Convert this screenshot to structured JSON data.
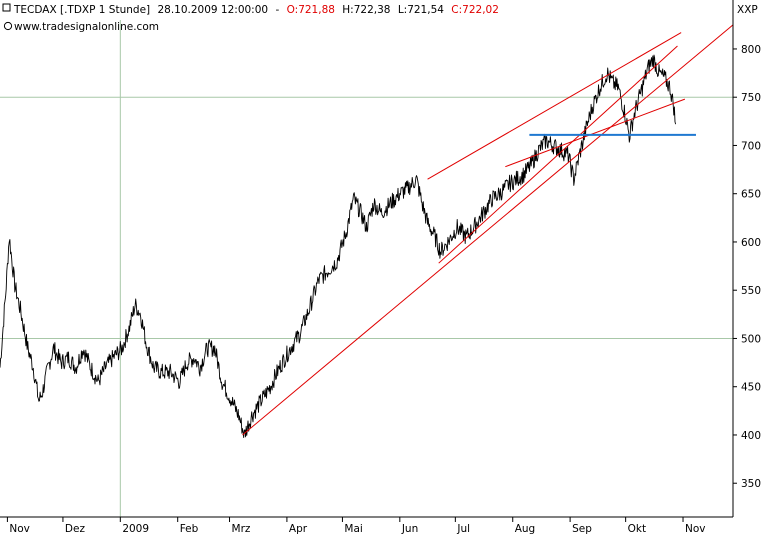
{
  "header": {
    "symbol": "TECDAX [.TDXP  1 Stunde]",
    "datetime": "28.10.2009 12:00:00",
    "sep": "-",
    "open": "O:721,88",
    "high": "H:722,38",
    "low": "L:721,54",
    "close": "C:722,02",
    "source": "www.tradesignalonline.com",
    "axis_symbol": "XXP"
  },
  "colors": {
    "price": "#000000",
    "trendline": "#e00000",
    "support": "#1f78d1",
    "grid": "#a8c8a8",
    "axis": "#000000"
  },
  "chart_data": {
    "type": "line",
    "title": "TECDAX [.TDXP  1 Stunde]",
    "xlabel": "",
    "ylabel": "",
    "ylim": [
      315,
      830
    ],
    "y_ticks": [
      350,
      400,
      450,
      500,
      550,
      600,
      650,
      700,
      750,
      800
    ],
    "x_ticks": [
      "Nov",
      "Dez",
      "2009",
      "Feb",
      "Mrz",
      "Apr",
      "Mai",
      "Jun",
      "Jul",
      "Aug",
      "Sep",
      "Okt",
      "Nov"
    ],
    "x_range": [
      "2008-10-28",
      "2009-11-28"
    ],
    "grid_lines": {
      "x": [
        "2009"
      ],
      "y": [
        500,
        750
      ]
    },
    "series": [
      {
        "kind": "price",
        "points": [
          [
            "2008-10-28",
            470
          ],
          [
            "2008-10-31",
            545
          ],
          [
            "2008-11-02",
            605
          ],
          [
            "2008-11-05",
            555
          ],
          [
            "2008-11-08",
            530
          ],
          [
            "2008-11-12",
            490
          ],
          [
            "2008-11-15",
            470
          ],
          [
            "2008-11-18",
            435
          ],
          [
            "2008-11-20",
            445
          ],
          [
            "2008-11-23",
            470
          ],
          [
            "2008-11-26",
            490
          ],
          [
            "2008-11-30",
            475
          ],
          [
            "2008-12-04",
            480
          ],
          [
            "2008-12-08",
            470
          ],
          [
            "2008-12-12",
            490
          ],
          [
            "2008-12-16",
            470
          ],
          [
            "2008-12-20",
            455
          ],
          [
            "2008-12-24",
            470
          ],
          [
            "2008-12-28",
            480
          ],
          [
            "2009-01-02",
            490
          ],
          [
            "2009-01-06",
            512
          ],
          [
            "2009-01-09",
            535
          ],
          [
            "2009-01-12",
            525
          ],
          [
            "2009-01-15",
            495
          ],
          [
            "2009-01-19",
            470
          ],
          [
            "2009-01-23",
            465
          ],
          [
            "2009-01-28",
            465
          ],
          [
            "2009-02-02",
            455
          ],
          [
            "2009-02-06",
            475
          ],
          [
            "2009-02-10",
            480
          ],
          [
            "2009-02-13",
            470
          ],
          [
            "2009-02-17",
            490
          ],
          [
            "2009-02-21",
            490
          ],
          [
            "2009-02-25",
            455
          ],
          [
            "2009-03-01",
            440
          ],
          [
            "2009-03-06",
            420
          ],
          [
            "2009-03-09",
            400
          ],
          [
            "2009-03-13",
            420
          ],
          [
            "2009-03-18",
            435
          ],
          [
            "2009-03-23",
            450
          ],
          [
            "2009-03-28",
            470
          ],
          [
            "2009-04-03",
            490
          ],
          [
            "2009-04-08",
            505
          ],
          [
            "2009-04-13",
            530
          ],
          [
            "2009-04-18",
            560
          ],
          [
            "2009-04-23",
            570
          ],
          [
            "2009-04-28",
            580
          ],
          [
            "2009-05-03",
            610
          ],
          [
            "2009-05-07",
            645
          ],
          [
            "2009-05-11",
            630
          ],
          [
            "2009-05-14",
            615
          ],
          [
            "2009-05-18",
            640
          ],
          [
            "2009-05-22",
            630
          ],
          [
            "2009-05-27",
            640
          ],
          [
            "2009-06-01",
            650
          ],
          [
            "2009-06-05",
            655
          ],
          [
            "2009-06-10",
            665
          ],
          [
            "2009-06-13",
            640
          ],
          [
            "2009-06-16",
            620
          ],
          [
            "2009-06-20",
            605
          ],
          [
            "2009-06-23",
            590
          ],
          [
            "2009-06-27",
            600
          ],
          [
            "2009-07-02",
            615
          ],
          [
            "2009-07-07",
            605
          ],
          [
            "2009-07-12",
            618
          ],
          [
            "2009-07-16",
            630
          ],
          [
            "2009-07-21",
            645
          ],
          [
            "2009-07-25",
            650
          ],
          [
            "2009-07-30",
            660
          ],
          [
            "2009-08-03",
            665
          ],
          [
            "2009-08-07",
            670
          ],
          [
            "2009-08-11",
            680
          ],
          [
            "2009-08-15",
            695
          ],
          [
            "2009-08-19",
            705
          ],
          [
            "2009-08-23",
            700
          ],
          [
            "2009-08-27",
            695
          ],
          [
            "2009-08-31",
            690
          ],
          [
            "2009-09-03",
            665
          ],
          [
            "2009-09-06",
            690
          ],
          [
            "2009-09-10",
            720
          ],
          [
            "2009-09-13",
            740
          ],
          [
            "2009-09-17",
            760
          ],
          [
            "2009-09-21",
            775
          ],
          [
            "2009-09-24",
            765
          ],
          [
            "2009-09-27",
            760
          ],
          [
            "2009-10-01",
            730
          ],
          [
            "2009-10-03",
            710
          ],
          [
            "2009-10-06",
            735
          ],
          [
            "2009-10-10",
            760
          ],
          [
            "2009-10-13",
            780
          ],
          [
            "2009-10-16",
            790
          ],
          [
            "2009-10-19",
            775
          ],
          [
            "2009-10-22",
            770
          ],
          [
            "2009-10-25",
            760
          ],
          [
            "2009-10-27",
            740
          ],
          [
            "2009-10-28",
            722
          ]
        ]
      },
      {
        "kind": "trendline",
        "points": [
          [
            "2009-03-08",
            400
          ],
          [
            "2009-11-28",
            825
          ]
        ]
      },
      {
        "kind": "trendline",
        "points": [
          [
            "2009-06-16",
            665
          ],
          [
            "2009-10-31",
            817
          ]
        ]
      },
      {
        "kind": "trendline",
        "points": [
          [
            "2009-06-22",
            578
          ],
          [
            "2009-10-29",
            803
          ]
        ]
      },
      {
        "kind": "trendline",
        "points": [
          [
            "2009-07-28",
            678
          ],
          [
            "2009-11-02",
            748
          ]
        ]
      },
      {
        "kind": "support",
        "points": [
          [
            "2009-08-10",
            711
          ],
          [
            "2009-11-08",
            711
          ]
        ]
      }
    ]
  }
}
